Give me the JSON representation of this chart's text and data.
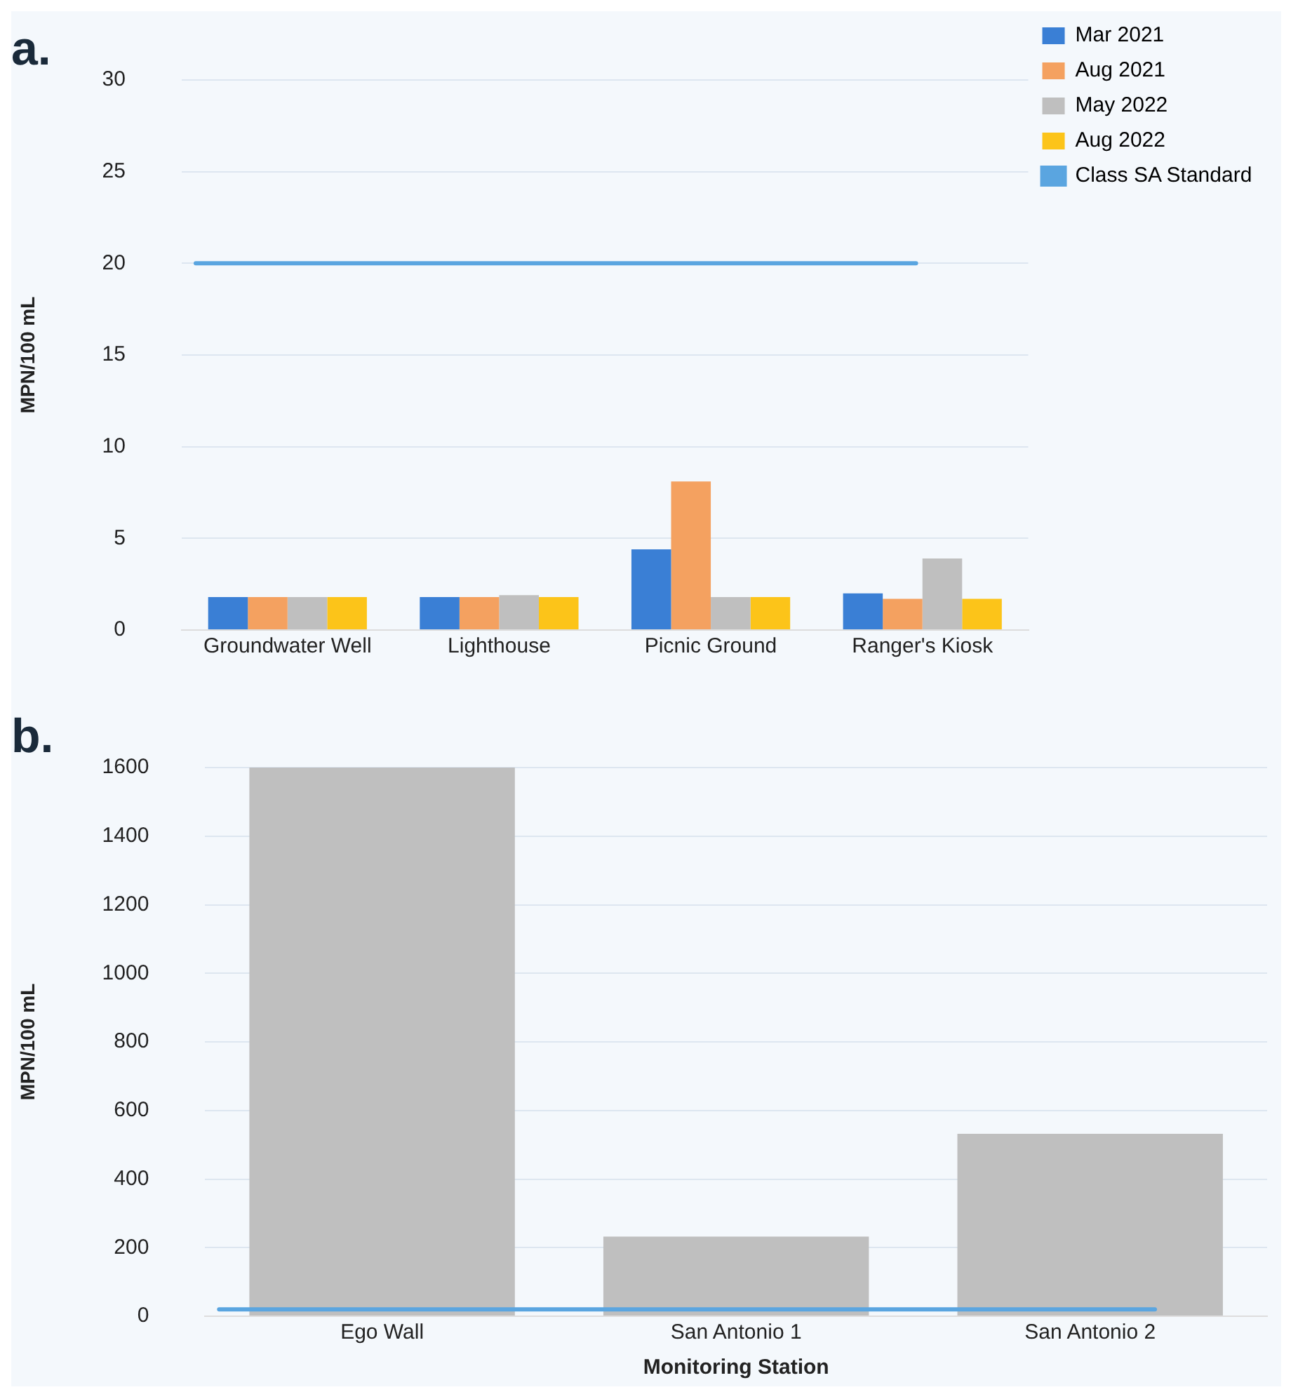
{
  "chart_data": [
    {
      "type": "bar",
      "title": "a.",
      "ylabel": "MPN/100 mL",
      "categories": [
        "Groundwater Well",
        "Lighthouse",
        "Picnic Ground",
        "Ranger's Kiosk"
      ],
      "series": [
        {
          "name": "Mar 2021",
          "color": "#3a7fd5",
          "values": [
            1.8,
            1.8,
            4.4,
            2.0
          ]
        },
        {
          "name": "Aug 2021",
          "color": "#f4a160",
          "values": [
            1.8,
            1.8,
            8.1,
            1.7
          ]
        },
        {
          "name": "May 2022",
          "color": "#bfbfbf",
          "values": [
            1.8,
            1.9,
            1.8,
            3.9
          ]
        },
        {
          "name": "Aug 2022",
          "color": "#fcc419",
          "values": [
            1.8,
            1.8,
            1.8,
            1.7
          ]
        }
      ],
      "ref_lines": [
        {
          "axis": "y",
          "value": 20,
          "label": "Class SA Standard",
          "color": "#5aa5e0"
        }
      ],
      "ylim": [
        0,
        30
      ],
      "yticks": [
        0,
        5,
        10,
        15,
        20,
        25,
        30
      ],
      "grid": "y",
      "legend": "top right"
    },
    {
      "type": "bar",
      "title": "b.",
      "ylabel": "MPN/100 mL",
      "xlabel": "Monitoring Station",
      "categories": [
        "Ego Wall",
        "San Antonio 1",
        "San Antonio 2"
      ],
      "series": [
        {
          "color": "#bfbfbf",
          "values": [
            1600,
            232,
            532
          ]
        }
      ],
      "ref_lines": [
        {
          "axis": "y",
          "value": 20,
          "color": "#5aa5e0"
        }
      ],
      "ylim": [
        0,
        1600
      ],
      "yticks": [
        0,
        200,
        400,
        600,
        800,
        1000,
        1200,
        1400,
        1600
      ],
      "grid": "y"
    }
  ]
}
